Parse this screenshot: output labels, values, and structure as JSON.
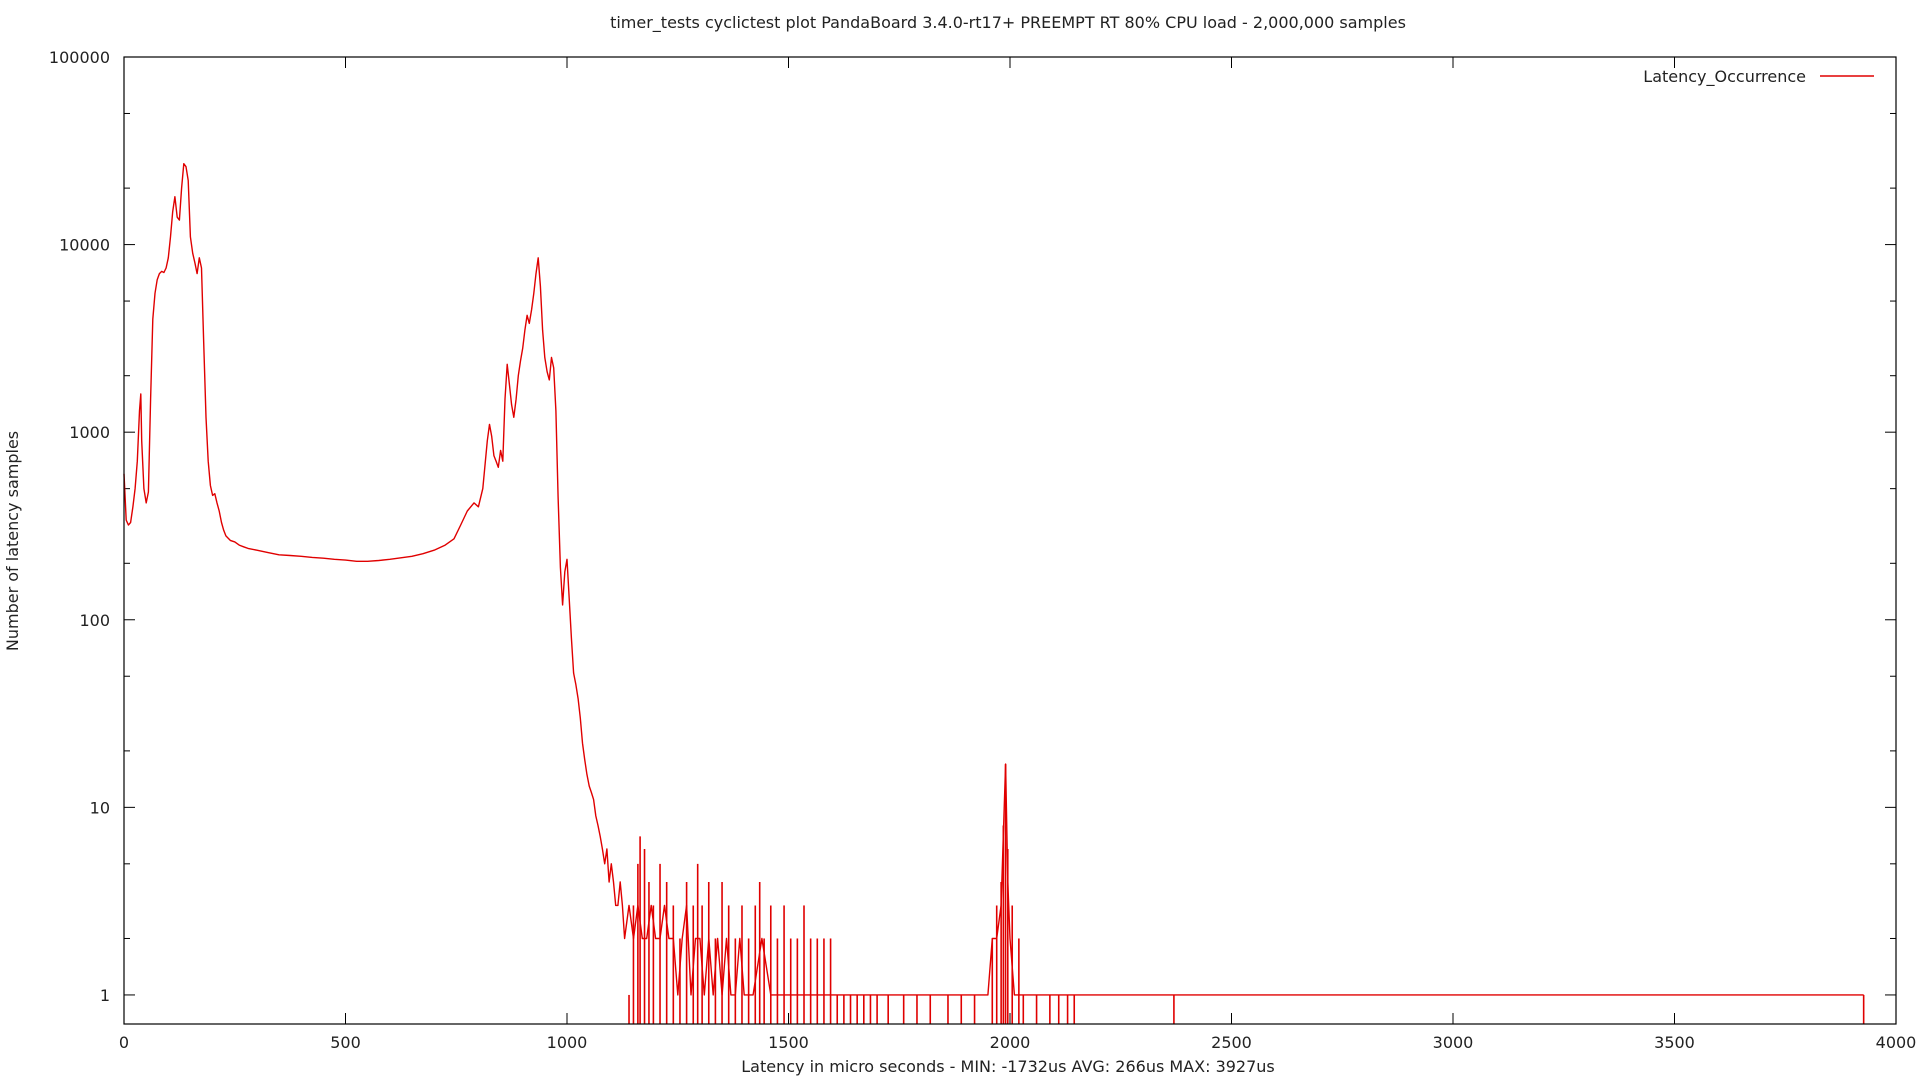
{
  "chart_data": {
    "type": "line",
    "title": "timer_tests cyclictest plot PandaBoard 3.4.0-rt17+ PREEMPT RT 80% CPU load  -  2,000,000 samples",
    "xlabel": "Latency in micro seconds - MIN:  -1732us  AVG: 266us MAX: 3927us",
    "ylabel": "Number of latency samples",
    "xlim": [
      0,
      4000
    ],
    "ylim": [
      0.7,
      100000
    ],
    "y_scale": "log",
    "grid": false,
    "legend_position": "top-right",
    "x_ticks": [
      0,
      500,
      1000,
      1500,
      2000,
      2500,
      3000,
      3500,
      4000
    ],
    "x_tick_labels": [
      "0",
      "500",
      "1000",
      "1500",
      "2000",
      "2500",
      "3000",
      "3500",
      "4000"
    ],
    "y_ticks": [
      1,
      10,
      100,
      1000,
      10000,
      100000
    ],
    "y_tick_labels": [
      "1",
      "10",
      "100",
      "1000",
      "10000",
      "100000"
    ],
    "series": [
      {
        "name": "Latency_Occurrence",
        "color": "#e00000",
        "style": "impulse-line",
        "points": [
          [
            0,
            600
          ],
          [
            5,
            340
          ],
          [
            10,
            320
          ],
          [
            15,
            330
          ],
          [
            20,
            400
          ],
          [
            25,
            500
          ],
          [
            30,
            700
          ],
          [
            35,
            1300
          ],
          [
            38,
            1600
          ],
          [
            40,
            900
          ],
          [
            45,
            500
          ],
          [
            50,
            420
          ],
          [
            55,
            480
          ],
          [
            60,
            1500
          ],
          [
            65,
            4000
          ],
          [
            70,
            5500
          ],
          [
            75,
            6500
          ],
          [
            80,
            7000
          ],
          [
            85,
            7200
          ],
          [
            90,
            7100
          ],
          [
            95,
            7500
          ],
          [
            100,
            8500
          ],
          [
            105,
            11000
          ],
          [
            110,
            15000
          ],
          [
            115,
            18000
          ],
          [
            120,
            14000
          ],
          [
            125,
            13500
          ],
          [
            130,
            20000
          ],
          [
            135,
            27000
          ],
          [
            140,
            26000
          ],
          [
            145,
            22000
          ],
          [
            150,
            11000
          ],
          [
            155,
            9000
          ],
          [
            160,
            8000
          ],
          [
            165,
            7000
          ],
          [
            170,
            8500
          ],
          [
            175,
            7500
          ],
          [
            180,
            3000
          ],
          [
            185,
            1200
          ],
          [
            190,
            700
          ],
          [
            195,
            520
          ],
          [
            200,
            460
          ],
          [
            205,
            470
          ],
          [
            210,
            420
          ],
          [
            215,
            380
          ],
          [
            220,
            330
          ],
          [
            225,
            300
          ],
          [
            230,
            280
          ],
          [
            240,
            265
          ],
          [
            250,
            260
          ],
          [
            260,
            250
          ],
          [
            270,
            245
          ],
          [
            280,
            240
          ],
          [
            300,
            235
          ],
          [
            325,
            228
          ],
          [
            350,
            222
          ],
          [
            375,
            220
          ],
          [
            400,
            218
          ],
          [
            425,
            215
          ],
          [
            450,
            213
          ],
          [
            475,
            210
          ],
          [
            500,
            208
          ],
          [
            525,
            205
          ],
          [
            550,
            205
          ],
          [
            575,
            207
          ],
          [
            600,
            210
          ],
          [
            625,
            214
          ],
          [
            650,
            218
          ],
          [
            675,
            225
          ],
          [
            700,
            235
          ],
          [
            725,
            250
          ],
          [
            745,
            270
          ],
          [
            760,
            320
          ],
          [
            775,
            380
          ],
          [
            790,
            420
          ],
          [
            800,
            400
          ],
          [
            810,
            500
          ],
          [
            820,
            900
          ],
          [
            825,
            1100
          ],
          [
            830,
            950
          ],
          [
            835,
            750
          ],
          [
            840,
            700
          ],
          [
            845,
            650
          ],
          [
            850,
            800
          ],
          [
            855,
            700
          ],
          [
            860,
            1500
          ],
          [
            865,
            2300
          ],
          [
            870,
            1800
          ],
          [
            875,
            1400
          ],
          [
            880,
            1200
          ],
          [
            885,
            1500
          ],
          [
            890,
            2000
          ],
          [
            895,
            2400
          ],
          [
            900,
            2800
          ],
          [
            905,
            3500
          ],
          [
            910,
            4200
          ],
          [
            915,
            3800
          ],
          [
            920,
            4500
          ],
          [
            925,
            5500
          ],
          [
            930,
            7000
          ],
          [
            935,
            8500
          ],
          [
            940,
            6000
          ],
          [
            945,
            3500
          ],
          [
            950,
            2500
          ],
          [
            955,
            2100
          ],
          [
            960,
            1900
          ],
          [
            965,
            2500
          ],
          [
            970,
            2200
          ],
          [
            975,
            1300
          ],
          [
            980,
            450
          ],
          [
            985,
            190
          ],
          [
            990,
            120
          ],
          [
            995,
            180
          ],
          [
            1000,
            210
          ],
          [
            1005,
            130
          ],
          [
            1010,
            80
          ],
          [
            1015,
            52
          ],
          [
            1020,
            45
          ],
          [
            1025,
            38
          ],
          [
            1030,
            30
          ],
          [
            1035,
            22
          ],
          [
            1040,
            18
          ],
          [
            1045,
            15
          ],
          [
            1050,
            13
          ],
          [
            1055,
            12
          ],
          [
            1060,
            11
          ],
          [
            1065,
            9
          ],
          [
            1070,
            8
          ],
          [
            1075,
            7
          ],
          [
            1080,
            6
          ],
          [
            1085,
            5
          ],
          [
            1090,
            6
          ],
          [
            1095,
            4
          ],
          [
            1100,
            5
          ],
          [
            1105,
            4
          ],
          [
            1110,
            3
          ],
          [
            1115,
            3
          ],
          [
            1120,
            4
          ],
          [
            1125,
            3
          ],
          [
            1130,
            2
          ],
          [
            1140,
            3
          ],
          [
            1150,
            2
          ],
          [
            1160,
            3
          ],
          [
            1170,
            2
          ],
          [
            1180,
            2
          ],
          [
            1190,
            3
          ],
          [
            1200,
            2
          ],
          [
            1210,
            2
          ],
          [
            1220,
            3
          ],
          [
            1230,
            2
          ],
          [
            1240,
            2
          ],
          [
            1250,
            1
          ],
          [
            1260,
            2
          ],
          [
            1270,
            3
          ],
          [
            1280,
            1
          ],
          [
            1290,
            2
          ],
          [
            1300,
            2
          ],
          [
            1310,
            1
          ],
          [
            1320,
            2
          ],
          [
            1330,
            1
          ],
          [
            1340,
            2
          ],
          [
            1350,
            1
          ],
          [
            1360,
            2
          ],
          [
            1370,
            1
          ],
          [
            1380,
            1
          ],
          [
            1390,
            2
          ],
          [
            1400,
            1
          ],
          [
            1420,
            1
          ],
          [
            1440,
            2
          ],
          [
            1460,
            1
          ],
          [
            1480,
            1
          ],
          [
            1500,
            1
          ],
          [
            1520,
            1
          ],
          [
            1540,
            1
          ],
          [
            1560,
            1
          ],
          [
            1580,
            1
          ],
          [
            1600,
            1
          ],
          [
            1620,
            1
          ],
          [
            1640,
            1
          ],
          [
            1660,
            1
          ],
          [
            1680,
            1
          ],
          [
            1700,
            1
          ],
          [
            1750,
            1
          ],
          [
            1800,
            1
          ],
          [
            1850,
            1
          ],
          [
            1900,
            1
          ],
          [
            1950,
            1
          ],
          [
            1960,
            2
          ],
          [
            1970,
            2
          ],
          [
            1980,
            3
          ],
          [
            1990,
            17
          ],
          [
            1995,
            4
          ],
          [
            2000,
            2
          ],
          [
            2010,
            1
          ],
          [
            2050,
            1
          ],
          [
            2100,
            1
          ],
          [
            2140,
            1
          ],
          [
            2370,
            1
          ],
          [
            3927,
            1
          ]
        ],
        "impulses": [
          [
            1140,
            1
          ],
          [
            1150,
            3
          ],
          [
            1160,
            5
          ],
          [
            1165,
            7
          ],
          [
            1175,
            6
          ],
          [
            1185,
            4
          ],
          [
            1195,
            3
          ],
          [
            1210,
            5
          ],
          [
            1225,
            4
          ],
          [
            1240,
            3
          ],
          [
            1255,
            2
          ],
          [
            1270,
            4
          ],
          [
            1285,
            3
          ],
          [
            1295,
            5
          ],
          [
            1305,
            3
          ],
          [
            1320,
            4
          ],
          [
            1335,
            2
          ],
          [
            1350,
            4
          ],
          [
            1365,
            3
          ],
          [
            1380,
            2
          ],
          [
            1395,
            3
          ],
          [
            1410,
            2
          ],
          [
            1425,
            3
          ],
          [
            1435,
            4
          ],
          [
            1445,
            2
          ],
          [
            1460,
            3
          ],
          [
            1475,
            2
          ],
          [
            1490,
            3
          ],
          [
            1505,
            2
          ],
          [
            1520,
            2
          ],
          [
            1535,
            3
          ],
          [
            1550,
            2
          ],
          [
            1565,
            2
          ],
          [
            1580,
            2
          ],
          [
            1595,
            2
          ],
          [
            1610,
            1
          ],
          [
            1625,
            1
          ],
          [
            1640,
            1
          ],
          [
            1655,
            1
          ],
          [
            1670,
            1
          ],
          [
            1685,
            1
          ],
          [
            1700,
            1
          ],
          [
            1725,
            1
          ],
          [
            1760,
            1
          ],
          [
            1790,
            1
          ],
          [
            1820,
            1
          ],
          [
            1860,
            1
          ],
          [
            1890,
            1
          ],
          [
            1920,
            1
          ],
          [
            1960,
            2
          ],
          [
            1970,
            3
          ],
          [
            1980,
            4
          ],
          [
            1985,
            8
          ],
          [
            1990,
            17
          ],
          [
            1995,
            6
          ],
          [
            2005,
            3
          ],
          [
            2020,
            2
          ],
          [
            2030,
            1
          ],
          [
            2060,
            1
          ],
          [
            2090,
            1
          ],
          [
            2110,
            1
          ],
          [
            2130,
            1
          ],
          [
            2145,
            1
          ],
          [
            2370,
            1
          ],
          [
            3927,
            1
          ]
        ]
      }
    ]
  }
}
